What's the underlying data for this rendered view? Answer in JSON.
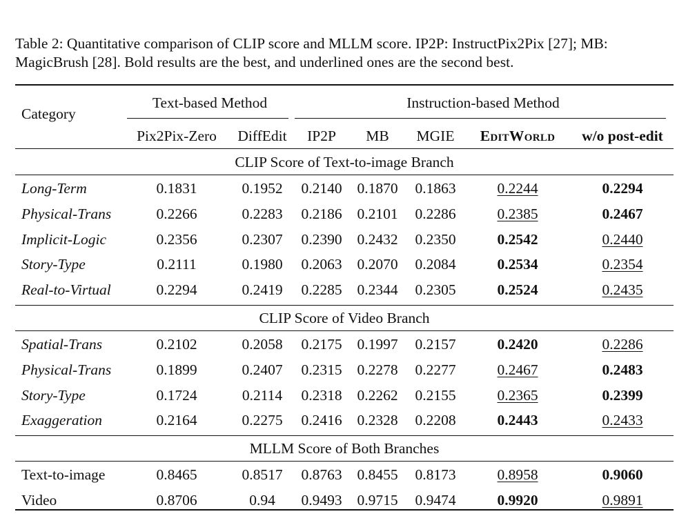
{
  "caption": "Table 2: Quantitative comparison of CLIP score and MLLM score. IP2P: InstructPix2Pix [27]; MB: MagicBrush [28]. Bold results are the best, and underlined ones are the second best.",
  "header": {
    "category": "Category",
    "group1": "Text-based Method",
    "group2": "Instruction-based Method",
    "columns": [
      "Pix2Pix-Zero",
      "DiffEdit",
      "IP2P",
      "MB",
      "MGIE",
      "EditWorld",
      "w/o post-edit"
    ]
  },
  "sections": [
    {
      "title": "CLIP Score of Text-to-image Branch",
      "italic": true,
      "rows": [
        {
          "category": "Long-Term",
          "values": [
            "0.1831",
            "0.1952",
            "0.2140",
            "0.1870",
            "0.1863",
            "0.2244",
            "0.2294"
          ],
          "best": 6,
          "second": 5
        },
        {
          "category": "Physical-Trans",
          "values": [
            "0.2266",
            "0.2283",
            "0.2186",
            "0.2101",
            "0.2286",
            "0.2385",
            "0.2467"
          ],
          "best": 6,
          "second": 5
        },
        {
          "category": "Implicit-Logic",
          "values": [
            "0.2356",
            "0.2307",
            "0.2390",
            "0.2432",
            "0.2350",
            "0.2542",
            "0.2440"
          ],
          "best": 5,
          "second": 6
        },
        {
          "category": "Story-Type",
          "values": [
            "0.2111",
            "0.1980",
            "0.2063",
            "0.2070",
            "0.2084",
            "0.2534",
            "0.2354"
          ],
          "best": 5,
          "second": 6
        },
        {
          "category": "Real-to-Virtual",
          "values": [
            "0.2294",
            "0.2419",
            "0.2285",
            "0.2344",
            "0.2305",
            "0.2524",
            "0.2435"
          ],
          "best": 5,
          "second": 6
        }
      ]
    },
    {
      "title": "CLIP Score of Video Branch",
      "italic": true,
      "rows": [
        {
          "category": "Spatial-Trans",
          "values": [
            "0.2102",
            "0.2058",
            "0.2175",
            "0.1997",
            "0.2157",
            "0.2420",
            "0.2286"
          ],
          "best": 5,
          "second": 6
        },
        {
          "category": "Physical-Trans",
          "values": [
            "0.1899",
            "0.2407",
            "0.2315",
            "0.2278",
            "0.2277",
            "0.2467",
            "0.2483"
          ],
          "best": 6,
          "second": 5
        },
        {
          "category": "Story-Type",
          "values": [
            "0.1724",
            "0.2114",
            "0.2318",
            "0.2262",
            "0.2155",
            "0.2365",
            "0.2399"
          ],
          "best": 6,
          "second": 5
        },
        {
          "category": "Exaggeration",
          "values": [
            "0.2164",
            "0.2275",
            "0.2416",
            "0.2328",
            "0.2208",
            "0.2443",
            "0.2433"
          ],
          "best": 5,
          "second": 6
        }
      ]
    },
    {
      "title": "MLLM Score of Both Branches",
      "italic": false,
      "rows": [
        {
          "category": "Text-to-image",
          "values": [
            "0.8465",
            "0.8517",
            "0.8763",
            "0.8455",
            "0.8173",
            "0.8958",
            "0.9060"
          ],
          "best": 6,
          "second": 5
        },
        {
          "category": "Video",
          "values": [
            "0.8706",
            "0.94",
            "0.9493",
            "0.9715",
            "0.9474",
            "0.9920",
            "0.9891"
          ],
          "best": 5,
          "second": 6
        }
      ]
    }
  ]
}
